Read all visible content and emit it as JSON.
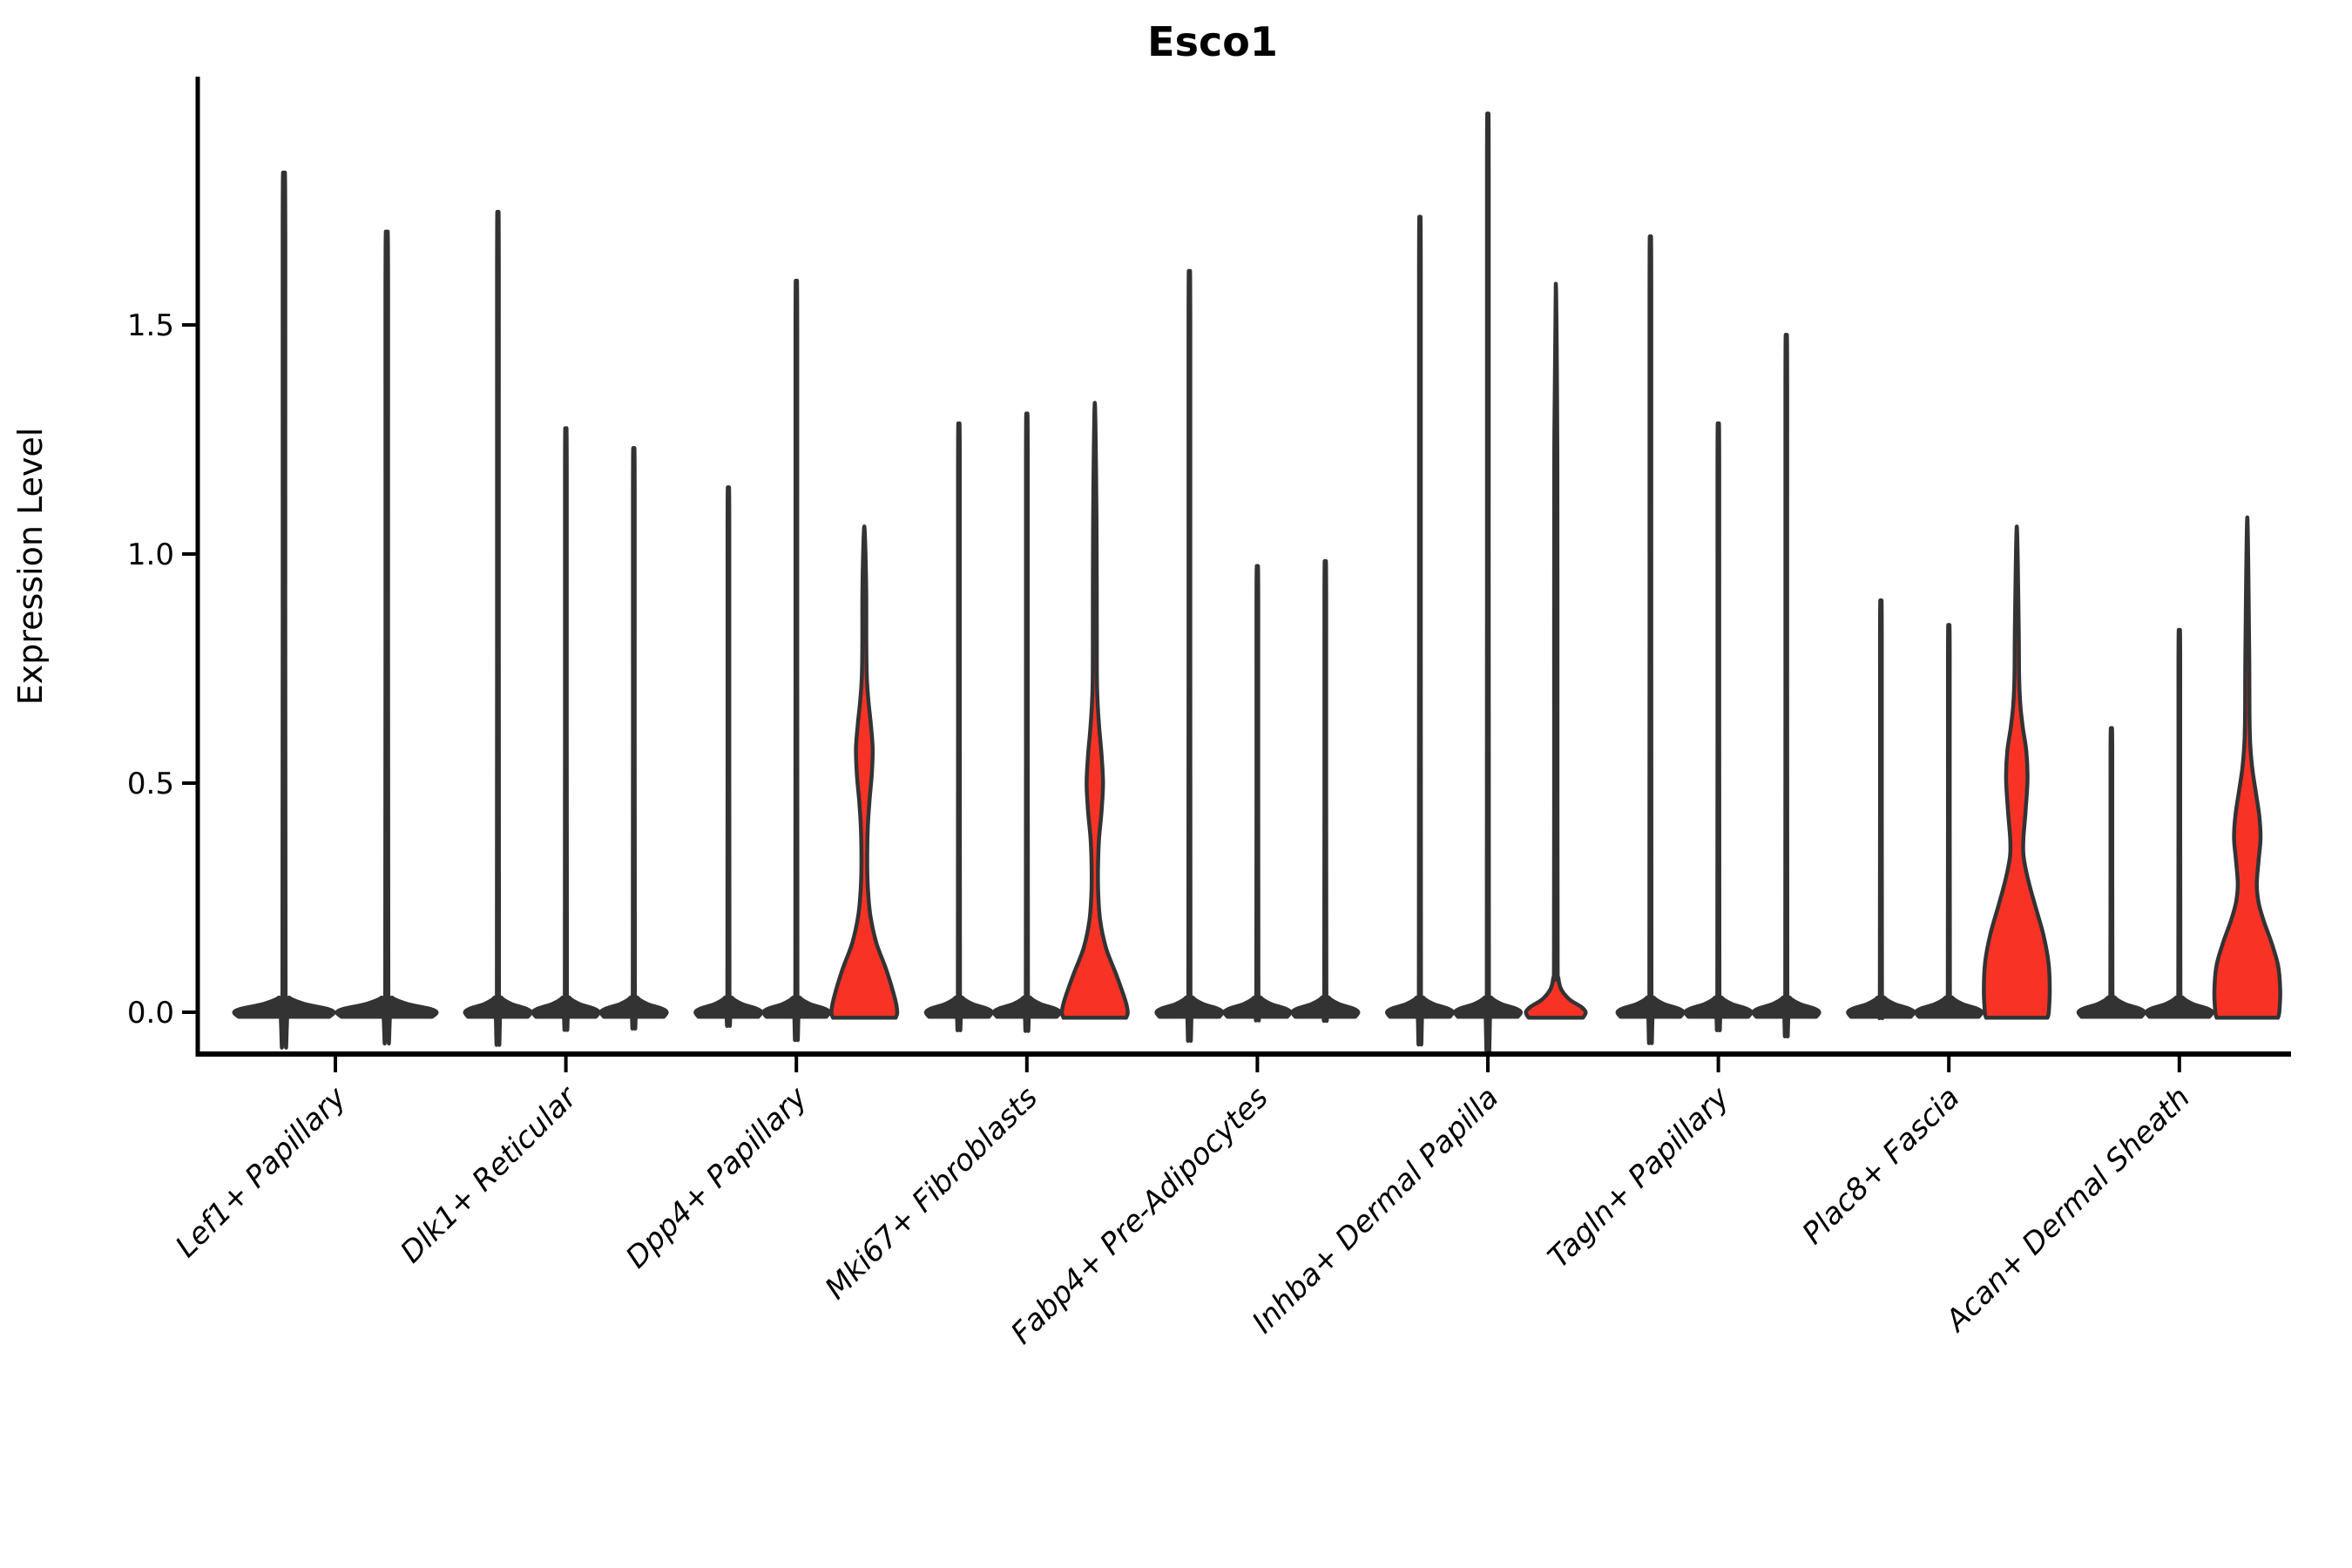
{
  "chart_data": {
    "type": "violin",
    "title": "Esco1",
    "xlabel": "",
    "ylabel": "Expression Level",
    "yticks": [
      {
        "value": 0.0,
        "label": "0.0"
      },
      {
        "value": 0.5,
        "label": "0.5"
      },
      {
        "value": 1.0,
        "label": "1.0"
      },
      {
        "value": 1.5,
        "label": "1.5"
      }
    ],
    "ylim": [
      -0.09,
      2.04
    ],
    "grid": false,
    "legend": "none",
    "categories": [
      "Lef1+ Papillary",
      "Dlk1+ Reticular",
      "Dpp4+ Papillary",
      "Mki67+ Fibroblasts",
      "Fabp4+ Pre-Adipocytes",
      "Inhba+ Dermal Papilla",
      "Tagln+ Papillary",
      "Plac8+ Fascia",
      "Acan+ Dermal Sheath"
    ],
    "groups": [
      {
        "category": "Lef1+ Papillary",
        "violins": [
          {
            "max": 1.73,
            "expressed": false
          },
          {
            "max": 1.61,
            "expressed": false
          }
        ]
      },
      {
        "category": "Dlk1+ Reticular",
        "violins": [
          {
            "max": 1.65,
            "expressed": false
          },
          {
            "max": 1.21,
            "expressed": false
          },
          {
            "max": 1.17,
            "expressed": false
          }
        ]
      },
      {
        "category": "Dpp4+ Papillary",
        "violins": [
          {
            "max": 1.09,
            "expressed": false
          },
          {
            "max": 1.51,
            "expressed": false
          },
          {
            "max": 1.06,
            "expressed": true,
            "bulge_center": 0.58,
            "bulge_range": [
              0.46,
              0.71
            ],
            "base_top": 0.28,
            "profile": [
              [
                -0.012,
                0.92
              ],
              [
                0,
                0.97
              ],
              [
                0.03,
                0.9
              ],
              [
                0.09,
                0.66
              ],
              [
                0.15,
                0.36
              ],
              [
                0.21,
                0.18
              ],
              [
                0.27,
                0.105
              ],
              [
                0.33,
                0.085
              ],
              [
                0.4,
                0.1
              ],
              [
                0.46,
                0.15
              ],
              [
                0.52,
                0.22
              ],
              [
                0.575,
                0.245
              ],
              [
                0.63,
                0.19
              ],
              [
                0.68,
                0.12
              ],
              [
                0.73,
                0.075
              ],
              [
                0.8,
                0.058
              ],
              [
                0.93,
                0.055
              ],
              [
                1.06,
                0
              ]
            ]
          }
        ]
      },
      {
        "category": "Mki67+ Fibroblasts",
        "violins": [
          {
            "max": 1.22,
            "expressed": false
          },
          {
            "max": 1.24,
            "expressed": false
          },
          {
            "max": 1.33,
            "expressed": true,
            "bulge_center": 0.5,
            "bulge_range": [
              0.41,
              0.67
            ],
            "base_top": 0.25,
            "profile": [
              [
                -0.012,
                0.92
              ],
              [
                0,
                0.97
              ],
              [
                0.025,
                0.9
              ],
              [
                0.08,
                0.64
              ],
              [
                0.14,
                0.33
              ],
              [
                0.2,
                0.16
              ],
              [
                0.26,
                0.1
              ],
              [
                0.32,
                0.095
              ],
              [
                0.38,
                0.125
              ],
              [
                0.44,
                0.2
              ],
              [
                0.5,
                0.24
              ],
              [
                0.56,
                0.2
              ],
              [
                0.62,
                0.13
              ],
              [
                0.68,
                0.08
              ],
              [
                0.76,
                0.058
              ],
              [
                1.05,
                0.052
              ],
              [
                1.33,
                0
              ]
            ]
          }
        ]
      },
      {
        "category": "Fabp4+ Pre-Adipocytes",
        "violins": [
          {
            "max": 1.53,
            "expressed": false
          },
          {
            "max": 0.93,
            "expressed": false
          },
          {
            "max": 0.94,
            "expressed": false
          }
        ]
      },
      {
        "category": "Inhba+ Dermal Papilla",
        "violins": [
          {
            "max": 1.64,
            "expressed": false
          },
          {
            "max": 1.85,
            "expressed": false
          },
          {
            "max": 1.59,
            "expressed": true,
            "bulge_center": 0.0,
            "bulge_range": [
              0.0,
              0.06
            ],
            "base_top": 0.06,
            "profile": [
              [
                -0.012,
                0.8
              ],
              [
                0,
                0.88
              ],
              [
                0.012,
                0.74
              ],
              [
                0.028,
                0.4
              ],
              [
                0.05,
                0.16
              ],
              [
                0.075,
                0.075
              ],
              [
                0.11,
                0.055
              ],
              [
                0.5,
                0.048
              ],
              [
                1.2,
                0.045
              ],
              [
                1.59,
                0
              ]
            ]
          }
        ]
      },
      {
        "category": "Tagln+ Papillary",
        "violins": [
          {
            "max": 1.6,
            "expressed": false
          },
          {
            "max": 1.22,
            "expressed": false
          },
          {
            "max": 1.4,
            "expressed": false
          }
        ]
      },
      {
        "category": "Plac8+ Fascia",
        "violins": [
          {
            "max": 0.86,
            "expressed": false
          },
          {
            "max": 0.81,
            "expressed": false
          },
          {
            "max": 1.06,
            "expressed": true,
            "bulge_center": 0.53,
            "bulge_range": [
              0.41,
              0.66
            ],
            "base_top": 0.31,
            "profile": [
              [
                -0.012,
                0.9
              ],
              [
                0,
                0.94
              ],
              [
                0.05,
                0.97
              ],
              [
                0.11,
                0.93
              ],
              [
                0.17,
                0.78
              ],
              [
                0.23,
                0.55
              ],
              [
                0.29,
                0.33
              ],
              [
                0.34,
                0.2
              ],
              [
                0.38,
                0.195
              ],
              [
                0.44,
                0.26
              ],
              [
                0.51,
                0.315
              ],
              [
                0.57,
                0.28
              ],
              [
                0.62,
                0.18
              ],
              [
                0.67,
                0.105
              ],
              [
                0.73,
                0.068
              ],
              [
                0.85,
                0.055
              ],
              [
                1.06,
                0
              ]
            ]
          }
        ]
      },
      {
        "category": "Acan+ Dermal Sheath",
        "violins": [
          {
            "max": 0.6,
            "expressed": false
          },
          {
            "max": 0.8,
            "expressed": false
          },
          {
            "max": 1.08,
            "expressed": true,
            "bulge_center": 0.38,
            "bulge_range": [
              0.27,
              0.55
            ],
            "base_top": 0.24,
            "profile": [
              [
                -0.012,
                0.9
              ],
              [
                0,
                0.94
              ],
              [
                0.045,
                0.97
              ],
              [
                0.1,
                0.91
              ],
              [
                0.15,
                0.72
              ],
              [
                0.2,
                0.48
              ],
              [
                0.24,
                0.33
              ],
              [
                0.28,
                0.28
              ],
              [
                0.33,
                0.33
              ],
              [
                0.38,
                0.39
              ],
              [
                0.43,
                0.35
              ],
              [
                0.48,
                0.25
              ],
              [
                0.53,
                0.15
              ],
              [
                0.58,
                0.09
              ],
              [
                0.64,
                0.066
              ],
              [
                0.8,
                0.055
              ],
              [
                1.08,
                0
              ]
            ]
          }
        ]
      }
    ],
    "colors": {
      "violin_fill": "#f93226",
      "violin_outline": "#333333",
      "collapsed_fill": "#333333",
      "axis": "#000000",
      "text": "#000000",
      "background": "#ffffff"
    }
  }
}
